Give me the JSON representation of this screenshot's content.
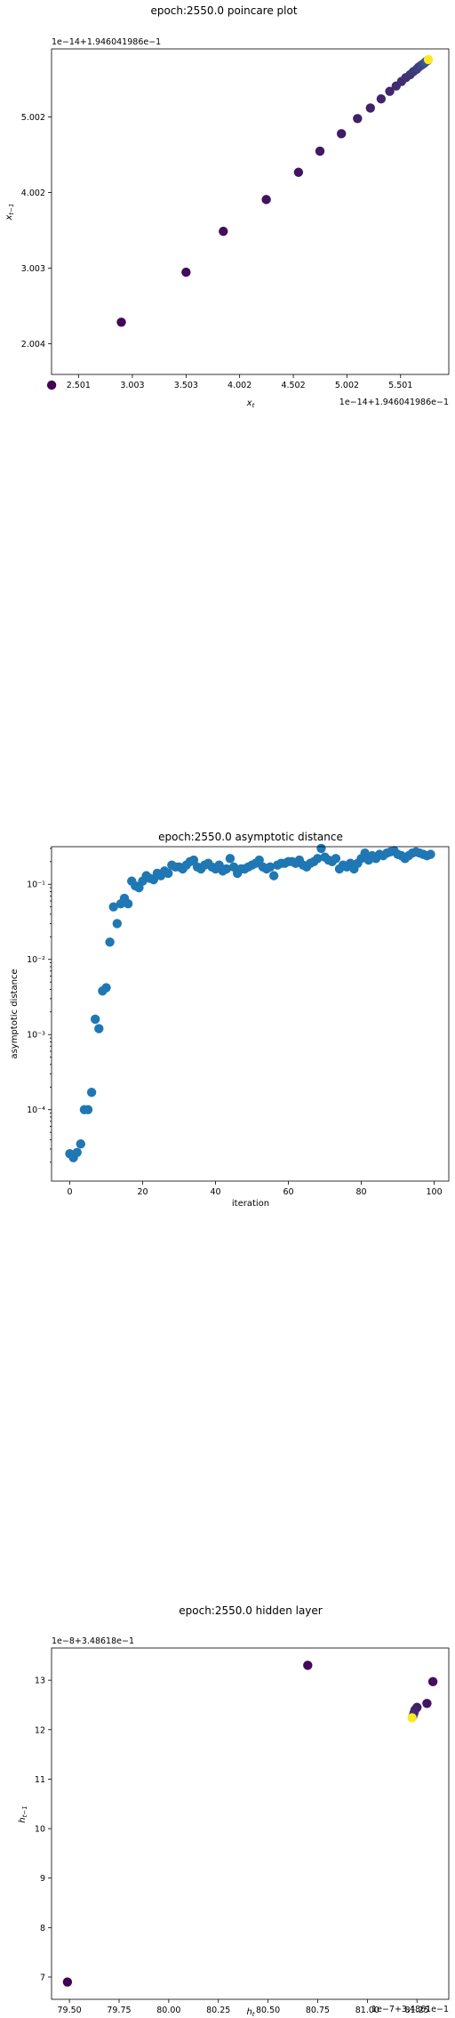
{
  "chart_data": [
    {
      "type": "scatter",
      "title": "epoch:2550.0 poincare plot",
      "xlabel": "$x_t$",
      "ylabel": "$x_{t-1}$",
      "x_offset_label": "1e−14+1.946041986e−1",
      "y_offset_label": "1e−14+1.946041986e−1",
      "xticks": [
        "2.501",
        "3.003",
        "3.503",
        "4.002",
        "4.502",
        "5.002",
        "5.501"
      ],
      "xtick_values": [
        2.501,
        3.003,
        3.503,
        4.002,
        4.502,
        5.002,
        5.501
      ],
      "yticks": [
        "2.004",
        "3.003",
        "4.002",
        "5.002"
      ],
      "ytick_values": [
        2.004,
        3.003,
        4.002,
        5.002
      ],
      "xlim": [
        2.25,
        5.95
      ],
      "ylim": [
        1.6,
        5.9
      ],
      "colormap": "viridis",
      "points": [
        {
          "x": 2.251,
          "y": 1.459,
          "c": 0.0
        },
        {
          "x": 2.9,
          "y": 2.29,
          "c": 0.02
        },
        {
          "x": 3.503,
          "y": 2.95,
          "c": 0.03
        },
        {
          "x": 3.85,
          "y": 3.49,
          "c": 0.04
        },
        {
          "x": 4.25,
          "y": 3.91,
          "c": 0.05
        },
        {
          "x": 4.55,
          "y": 4.27,
          "c": 0.06
        },
        {
          "x": 4.75,
          "y": 4.55,
          "c": 0.07
        },
        {
          "x": 4.95,
          "y": 4.78,
          "c": 0.08
        },
        {
          "x": 5.1,
          "y": 4.98,
          "c": 0.09
        },
        {
          "x": 5.22,
          "y": 5.12,
          "c": 0.1
        },
        {
          "x": 5.32,
          "y": 5.24,
          "c": 0.11
        },
        {
          "x": 5.4,
          "y": 5.34,
          "c": 0.12
        },
        {
          "x": 5.46,
          "y": 5.41,
          "c": 0.13
        },
        {
          "x": 5.51,
          "y": 5.47,
          "c": 0.14
        },
        {
          "x": 5.55,
          "y": 5.52,
          "c": 0.15
        },
        {
          "x": 5.59,
          "y": 5.56,
          "c": 0.16
        },
        {
          "x": 5.62,
          "y": 5.6,
          "c": 0.17
        },
        {
          "x": 5.65,
          "y": 5.63,
          "c": 0.18
        },
        {
          "x": 5.67,
          "y": 5.66,
          "c": 0.19
        },
        {
          "x": 5.69,
          "y": 5.68,
          "c": 0.2
        },
        {
          "x": 5.71,
          "y": 5.7,
          "c": 0.22
        },
        {
          "x": 5.725,
          "y": 5.715,
          "c": 0.24
        },
        {
          "x": 5.735,
          "y": 5.73,
          "c": 0.26
        },
        {
          "x": 5.745,
          "y": 5.74,
          "c": 0.28
        },
        {
          "x": 5.755,
          "y": 5.75,
          "c": 0.3
        },
        {
          "x": 5.76,
          "y": 5.76,
          "c": 1.0
        }
      ]
    },
    {
      "type": "scatter",
      "title": "epoch:2550.0 asymptotic distance",
      "xlabel": "iteration",
      "ylabel": "asymptotic distance",
      "yscale": "log",
      "xticks": [
        "0",
        "20",
        "40",
        "60",
        "80",
        "100"
      ],
      "xtick_values": [
        0,
        20,
        40,
        60,
        80,
        100
      ],
      "yticks": [
        "10⁻⁴",
        "10⁻³",
        "10⁻²",
        "10⁻¹"
      ],
      "ytick_exponents": [
        -4,
        -3,
        -2,
        -1
      ],
      "xlim": [
        -5,
        104
      ],
      "ylim_log10": [
        -4.95,
        -0.5
      ],
      "color": "#1f77b4",
      "x": [
        0,
        1,
        2,
        3,
        4,
        5,
        6,
        7,
        8,
        9,
        10,
        11,
        12,
        13,
        14,
        15,
        16,
        17,
        18,
        19,
        20,
        21,
        22,
        23,
        24,
        25,
        26,
        27,
        28,
        29,
        30,
        31,
        32,
        33,
        34,
        35,
        36,
        37,
        38,
        39,
        40,
        41,
        42,
        43,
        44,
        45,
        46,
        47,
        48,
        49,
        50,
        51,
        52,
        53,
        54,
        55,
        56,
        57,
        58,
        59,
        60,
        61,
        62,
        63,
        64,
        65,
        66,
        67,
        68,
        69,
        70,
        71,
        72,
        73,
        74,
        75,
        76,
        77,
        78,
        79,
        80,
        81,
        82,
        83,
        84,
        85,
        86,
        87,
        88,
        89,
        90,
        91,
        92,
        93,
        94,
        95,
        96,
        97,
        98,
        99
      ],
      "y": [
        2.6e-05,
        2.3e-05,
        2.7e-05,
        3.5e-05,
        0.0001,
        0.0001,
        0.00017,
        0.0016,
        0.0012,
        0.0038,
        0.0042,
        0.017,
        0.05,
        0.03,
        0.055,
        0.065,
        0.055,
        0.11,
        0.095,
        0.09,
        0.11,
        0.13,
        0.12,
        0.115,
        0.14,
        0.13,
        0.15,
        0.14,
        0.18,
        0.17,
        0.17,
        0.16,
        0.18,
        0.2,
        0.21,
        0.17,
        0.16,
        0.18,
        0.19,
        0.17,
        0.16,
        0.18,
        0.15,
        0.16,
        0.22,
        0.17,
        0.14,
        0.16,
        0.16,
        0.17,
        0.18,
        0.19,
        0.21,
        0.17,
        0.16,
        0.17,
        0.13,
        0.18,
        0.19,
        0.19,
        0.2,
        0.2,
        0.19,
        0.21,
        0.18,
        0.17,
        0.19,
        0.2,
        0.22,
        0.3,
        0.23,
        0.21,
        0.2,
        0.22,
        0.16,
        0.18,
        0.17,
        0.19,
        0.16,
        0.19,
        0.22,
        0.26,
        0.21,
        0.24,
        0.22,
        0.25,
        0.24,
        0.26,
        0.27,
        0.28,
        0.25,
        0.24,
        0.22,
        0.24,
        0.26,
        0.27,
        0.26,
        0.25,
        0.24,
        0.25
      ]
    },
    {
      "type": "scatter",
      "title": "epoch:2550.0 hidden layer",
      "xlabel": "$h_t$",
      "ylabel": "$h_{t-1}$",
      "x_offset_label": "1e−7+3.4861e−1",
      "y_offset_label": "1e−8+3.48618e−1",
      "xticks": [
        "79.50",
        "79.75",
        "80.00",
        "80.25",
        "80.50",
        "80.75",
        "81.00",
        "81.25"
      ],
      "xtick_values": [
        79.5,
        79.75,
        80.0,
        80.25,
        80.5,
        80.75,
        81.0,
        81.25
      ],
      "yticks": [
        "7",
        "8",
        "9",
        "10",
        "11",
        "12",
        "13"
      ],
      "ytick_values": [
        7,
        8,
        9,
        10,
        11,
        12,
        13
      ],
      "xlim": [
        79.41,
        81.41
      ],
      "ylim": [
        6.55,
        13.65
      ],
      "colormap": "viridis",
      "points": [
        {
          "x": 79.49,
          "y": 6.9,
          "c": 0.0
        },
        {
          "x": 80.7,
          "y": 13.3,
          "c": 0.02
        },
        {
          "x": 81.33,
          "y": 12.97,
          "c": 0.04
        },
        {
          "x": 81.3,
          "y": 12.53,
          "c": 0.06
        },
        {
          "x": 81.25,
          "y": 12.45,
          "c": 0.08
        },
        {
          "x": 81.24,
          "y": 12.4,
          "c": 0.1
        },
        {
          "x": 81.235,
          "y": 12.34,
          "c": 0.12
        },
        {
          "x": 81.23,
          "y": 12.28,
          "c": 0.14
        },
        {
          "x": 81.225,
          "y": 12.24,
          "c": 1.0
        }
      ]
    }
  ]
}
